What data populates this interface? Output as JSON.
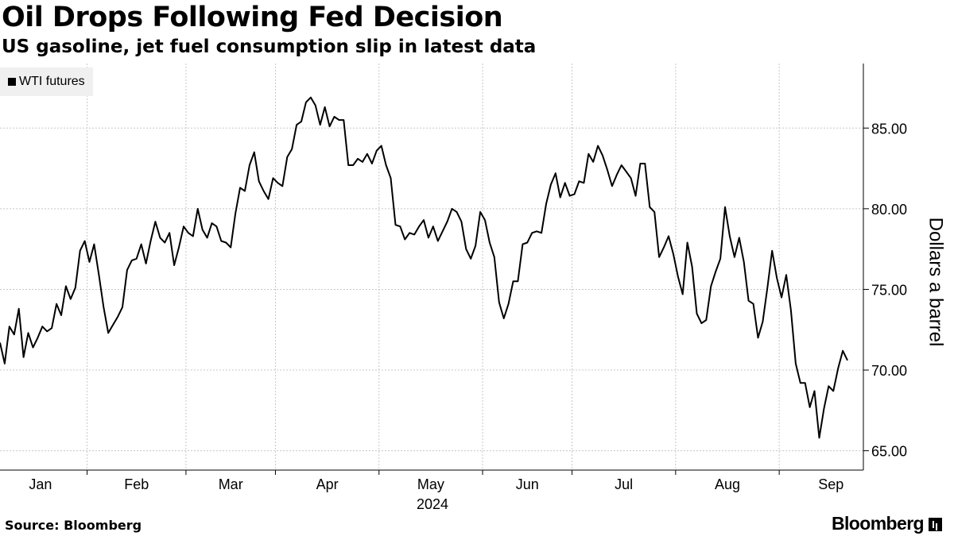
{
  "title": "Oil Drops Following Fed Decision",
  "subtitle": "US gasoline, jet fuel consumption slip in latest data",
  "source": "Source: Bloomberg",
  "brand": "Bloomberg",
  "chart_data": {
    "type": "line",
    "title": "Oil Drops Following Fed Decision",
    "subtitle": "US gasoline, jet fuel consumption slip in latest data",
    "xlabel": "2024",
    "ylabel": "Dollars a barrel",
    "ylim": [
      63.8,
      89
    ],
    "yticks": [
      65,
      70,
      75,
      80,
      85
    ],
    "ytick_labels": [
      "65.00",
      "70.00",
      "75.00",
      "80.00",
      "85.00"
    ],
    "y_axis_position": "right",
    "grid": true,
    "legend_position": "top-left",
    "months": [
      "Jan",
      "Feb",
      "Mar",
      "Apr",
      "May",
      "Jun",
      "Jul",
      "Aug",
      "Sep"
    ],
    "year_label": "2024",
    "series": [
      {
        "name": "WTI futures",
        "color": "#000000",
        "values": [
          71.7,
          70.4,
          72.7,
          72.2,
          73.8,
          70.8,
          72.3,
          71.4,
          72.0,
          72.7,
          72.4,
          72.6,
          74.1,
          73.4,
          75.2,
          74.4,
          75.1,
          77.4,
          78.0,
          76.7,
          77.8,
          75.9,
          73.9,
          72.3,
          72.8,
          73.3,
          73.9,
          76.2,
          76.8,
          76.9,
          77.8,
          76.6,
          78.0,
          79.2,
          78.2,
          77.9,
          78.5,
          76.5,
          77.6,
          78.9,
          78.5,
          78.3,
          80.0,
          78.7,
          78.2,
          79.1,
          78.9,
          78.0,
          77.9,
          77.6,
          79.7,
          81.3,
          81.1,
          82.7,
          83.5,
          81.7,
          81.1,
          80.6,
          81.9,
          81.6,
          81.4,
          83.2,
          83.7,
          85.2,
          85.4,
          86.6,
          86.9,
          86.4,
          85.2,
          86.3,
          85.1,
          85.7,
          85.5,
          85.5,
          82.7,
          82.7,
          83.1,
          82.9,
          83.4,
          82.8,
          83.6,
          83.9,
          82.7,
          81.9,
          79.0,
          78.9,
          78.1,
          78.5,
          78.4,
          78.9,
          79.3,
          78.2,
          78.9,
          78.0,
          78.6,
          79.2,
          80.0,
          79.8,
          79.2,
          77.5,
          76.9,
          77.7,
          79.8,
          79.3,
          77.9,
          77.0,
          74.2,
          73.2,
          74.1,
          75.5,
          75.5,
          77.8,
          77.9,
          78.5,
          78.6,
          78.5,
          80.3,
          81.5,
          82.2,
          80.7,
          81.6,
          80.8,
          80.9,
          81.7,
          81.6,
          83.4,
          82.9,
          83.9,
          83.3,
          82.4,
          81.4,
          82.1,
          82.7,
          82.3,
          81.9,
          80.8,
          82.8,
          82.8,
          80.1,
          79.8,
          77.0,
          77.6,
          78.3,
          77.2,
          75.8,
          74.7,
          77.9,
          76.4,
          73.5,
          72.9,
          73.1,
          75.2,
          76.1,
          76.9,
          80.1,
          78.3,
          77.0,
          78.2,
          76.7,
          74.3,
          74.1,
          72.0,
          73.0,
          75.1,
          77.4,
          75.7,
          74.5,
          75.9,
          73.7,
          70.4,
          69.2,
          69.2,
          67.7,
          68.7,
          65.8,
          67.6,
          69.0,
          68.7,
          70.1,
          71.2,
          70.6
        ]
      }
    ]
  }
}
